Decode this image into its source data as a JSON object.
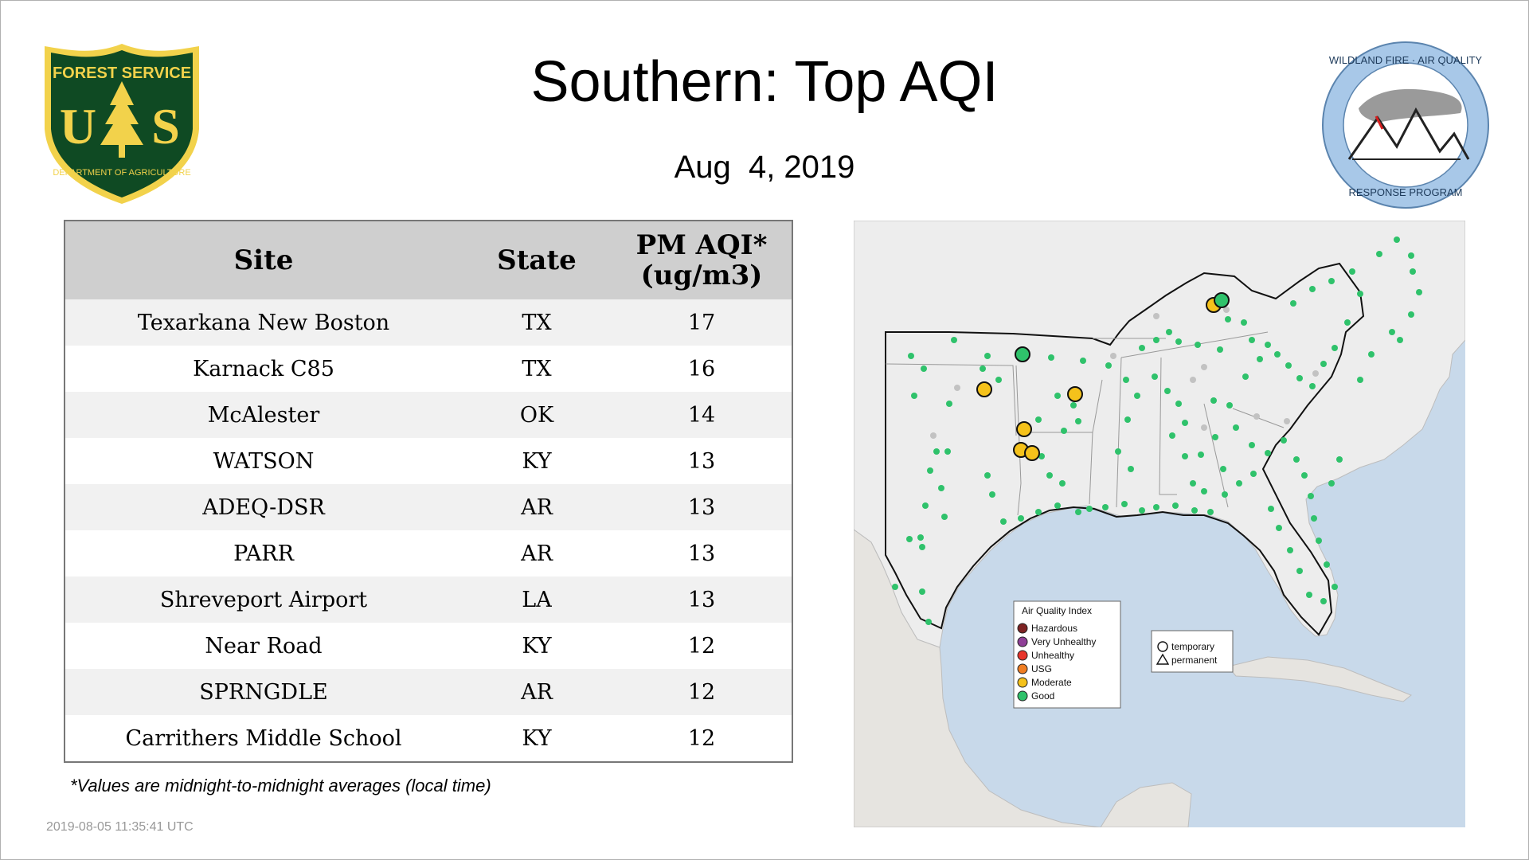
{
  "header": {
    "title": "Southern: Top AQI",
    "date": "Aug  4, 2019"
  },
  "logos": {
    "forest_service": {
      "top_text": "FOREST SERVICE",
      "initials": "US",
      "bottom_text": "DEPARTMENT OF AGRICULTURE",
      "colors": {
        "green": "#0f4a23",
        "gold": "#f2d24b"
      }
    },
    "wildland_fire": {
      "top_text": "WILDLAND FIRE · AIR QUALITY",
      "bottom_text": "RESPONSE PROGRAM",
      "ring_color": "#a8c8e8"
    }
  },
  "table": {
    "columns": [
      "Site",
      "State",
      "PM AQI*",
      "(ug/m3)"
    ],
    "rows": [
      {
        "site": "Texarkana New Boston",
        "state": "TX",
        "aqi": "17"
      },
      {
        "site": "Karnack C85",
        "state": "TX",
        "aqi": "16"
      },
      {
        "site": "McAlester",
        "state": "OK",
        "aqi": "14"
      },
      {
        "site": "WATSON",
        "state": "KY",
        "aqi": "13"
      },
      {
        "site": "ADEQ-DSR",
        "state": "AR",
        "aqi": "13"
      },
      {
        "site": "PARR",
        "state": "AR",
        "aqi": "13"
      },
      {
        "site": "Shreveport Airport",
        "state": "LA",
        "aqi": "13"
      },
      {
        "site": "Near Road",
        "state": "KY",
        "aqi": "12"
      },
      {
        "site": "SPRNGDLE",
        "state": "AR",
        "aqi": "12"
      },
      {
        "site": "Carrithers Middle School",
        "state": "KY",
        "aqi": "12"
      }
    ]
  },
  "footnote": "*Values are midnight-to-midnight averages (local time)",
  "timestamp": "2019-08-05 11:35:41 UTC",
  "map": {
    "legend_aqi": {
      "title": "Air Quality Index",
      "items": [
        {
          "label": "Hazardous",
          "color": "#7e2323"
        },
        {
          "label": "Very Unhealthy",
          "color": "#8f3f97"
        },
        {
          "label": "Unhealthy",
          "color": "#e8352c"
        },
        {
          "label": "USG",
          "color": "#f07e23"
        },
        {
          "label": "Moderate",
          "color": "#f5c21b"
        },
        {
          "label": "Good",
          "color": "#2fc26b"
        }
      ]
    },
    "legend_type": {
      "items": [
        {
          "label": "temporary",
          "shape": "circle"
        },
        {
          "label": "permanent",
          "shape": "triangle"
        }
      ]
    },
    "colors": {
      "water": "#c8d9ea",
      "land": "#ededed",
      "good": "#2fc26b",
      "moderate": "#f5c21b",
      "inactive": "#c2c2c2"
    }
  }
}
